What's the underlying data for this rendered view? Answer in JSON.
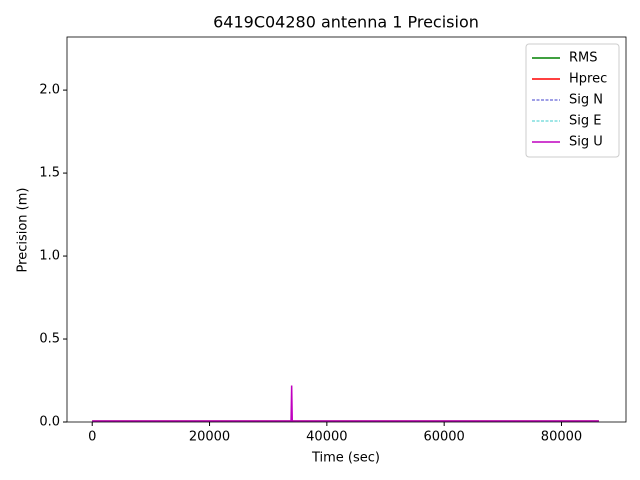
{
  "chart_data": {
    "type": "line",
    "title": "6419C04280 antenna 1 Precision",
    "x_label": "Time (sec)",
    "y_label": "Precision (m)",
    "x": [
      0,
      33900,
      34000,
      34100,
      86370
    ],
    "series": [
      {
        "name": "RMS",
        "color": "#008000",
        "linestyle": "solid",
        "values": [
          0.005,
          0.005,
          0.01,
          0.005,
          0.005
        ]
      },
      {
        "name": "Hprec",
        "color": "#ff0000",
        "linestyle": "solid",
        "values": [
          0.005,
          0.005,
          0.01,
          0.005,
          0.005
        ]
      },
      {
        "name": "Sig N",
        "color": "#0000bf",
        "linestyle": "dashed",
        "values": [
          0.003,
          0.003,
          0.006,
          0.003,
          0.003
        ]
      },
      {
        "name": "Sig E",
        "color": "#00bfbf",
        "linestyle": "dashed",
        "values": [
          0.003,
          0.003,
          0.006,
          0.003,
          0.003
        ]
      },
      {
        "name": "Sig U",
        "color": "#bf00bf",
        "linestyle": "solid",
        "values": [
          0.006,
          0.006,
          0.22,
          0.006,
          0.006
        ]
      }
    ],
    "xlim": [
      -4300,
      91000
    ],
    "ylim": [
      0,
      2.32
    ],
    "xticks": [
      0,
      20000,
      40000,
      60000,
      80000
    ],
    "yticks": [
      {
        "value": 0,
        "label": "0.0"
      },
      0.5,
      {
        "value": 1,
        "label": "1.0"
      },
      1.5,
      {
        "value": 2,
        "label": "2.0"
      }
    ],
    "legend": "upper right"
  }
}
